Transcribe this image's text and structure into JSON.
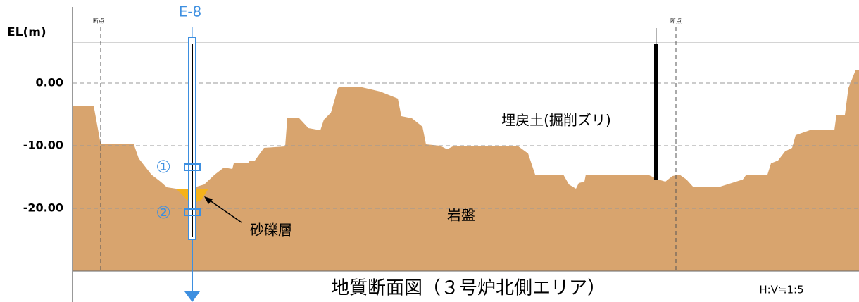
{
  "axis": {
    "label": "EL(m)",
    "ticks": [
      "0.00",
      "-10.00",
      "-20.00"
    ]
  },
  "section_points": [
    "断点",
    "断点"
  ],
  "boreholes": [
    {
      "label": "E-8"
    }
  ],
  "markers": [
    "①",
    "②"
  ],
  "layers": [
    "埋戻土(掘削ズリ)",
    "岩盤",
    "砂礫層"
  ],
  "title": "地質断面図（３号炉北側エリア）",
  "scale": "H:V≒1:5"
}
